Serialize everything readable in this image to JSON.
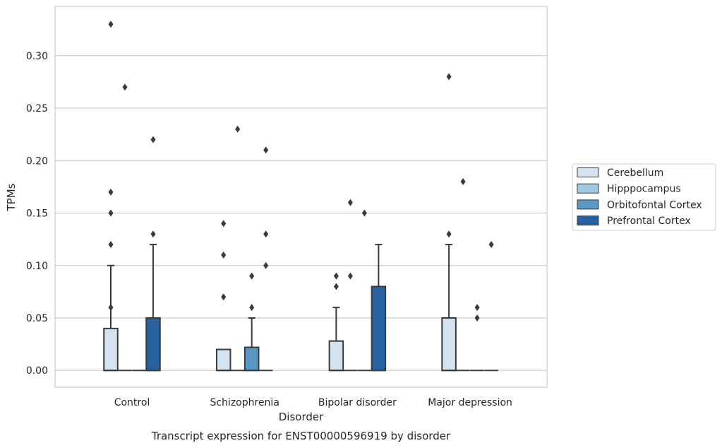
{
  "chart_data": {
    "type": "box",
    "xlabel": "Disorder",
    "ylabel": "TPMs",
    "caption": "Transcript expression for ENST00000596919 by disorder",
    "ylim": [
      -0.016,
      0.347
    ],
    "yticks": [
      "0.00",
      "0.05",
      "0.10",
      "0.15",
      "0.20",
      "0.25",
      "0.30"
    ],
    "categories": [
      "Control",
      "Schizophrenia",
      "Bipolar disorder",
      "Major depression"
    ],
    "legend_position": "right",
    "grid": true,
    "series": [
      {
        "name": "Cerebellum",
        "color": "#d4e3f1"
      },
      {
        "name": "Hipppocampus",
        "color": "#9ec9e0"
      },
      {
        "name": "Orbitofontal Cortex",
        "color": "#5b97c3"
      },
      {
        "name": "Prefrontal Cortex",
        "color": "#2861a0"
      }
    ],
    "boxes": [
      {
        "category": "Control",
        "series": "Cerebellum",
        "q1": 0,
        "median": 0,
        "q3": 0.04,
        "whisker_low": 0,
        "whisker_high": 0.1,
        "outliers": [
          0.33,
          0.17,
          0.15,
          0.12,
          0.06
        ]
      },
      {
        "category": "Control",
        "series": "Hipppocampus",
        "q1": 0,
        "median": 0,
        "q3": 0,
        "whisker_low": 0,
        "whisker_high": 0,
        "outliers": [
          0.27
        ]
      },
      {
        "category": "Control",
        "series": "Orbitofontal Cortex",
        "q1": 0,
        "median": 0,
        "q3": 0,
        "whisker_low": 0,
        "whisker_high": 0,
        "outliers": []
      },
      {
        "category": "Control",
        "series": "Prefrontal Cortex",
        "q1": 0,
        "median": 0,
        "q3": 0.05,
        "whisker_low": 0,
        "whisker_high": 0.12,
        "outliers": [
          0.22,
          0.13
        ]
      },
      {
        "category": "Schizophrenia",
        "series": "Cerebellum",
        "q1": 0,
        "median": 0,
        "q3": 0.02,
        "whisker_low": 0,
        "whisker_high": 0.02,
        "outliers": [
          0.14,
          0.11,
          0.07
        ]
      },
      {
        "category": "Schizophrenia",
        "series": "Hipppocampus",
        "q1": 0,
        "median": 0,
        "q3": 0,
        "whisker_low": 0,
        "whisker_high": 0,
        "outliers": [
          0.23
        ]
      },
      {
        "category": "Schizophrenia",
        "series": "Orbitofontal Cortex",
        "q1": 0,
        "median": 0,
        "q3": 0.022,
        "whisker_low": 0,
        "whisker_high": 0.05,
        "outliers": [
          0.09,
          0.06
        ]
      },
      {
        "category": "Schizophrenia",
        "series": "Prefrontal Cortex",
        "q1": 0,
        "median": 0,
        "q3": 0,
        "whisker_low": 0,
        "whisker_high": 0,
        "outliers": [
          0.21,
          0.13,
          0.1
        ]
      },
      {
        "category": "Bipolar disorder",
        "series": "Cerebellum",
        "q1": 0,
        "median": 0,
        "q3": 0.028,
        "whisker_low": 0,
        "whisker_high": 0.06,
        "outliers": [
          0.09,
          0.08
        ]
      },
      {
        "category": "Bipolar disorder",
        "series": "Hipppocampus",
        "q1": 0,
        "median": 0,
        "q3": 0,
        "whisker_low": 0,
        "whisker_high": 0,
        "outliers": [
          0.16,
          0.09
        ]
      },
      {
        "category": "Bipolar disorder",
        "series": "Orbitofontal Cortex",
        "q1": 0,
        "median": 0,
        "q3": 0,
        "whisker_low": 0,
        "whisker_high": 0,
        "outliers": [
          0.15
        ]
      },
      {
        "category": "Bipolar disorder",
        "series": "Prefrontal Cortex",
        "q1": 0,
        "median": 0,
        "q3": 0.08,
        "whisker_low": 0,
        "whisker_high": 0.12,
        "outliers": []
      },
      {
        "category": "Major depression",
        "series": "Cerebellum",
        "q1": 0,
        "median": 0,
        "q3": 0.05,
        "whisker_low": 0,
        "whisker_high": 0.12,
        "outliers": [
          0.28,
          0.13
        ]
      },
      {
        "category": "Major depression",
        "series": "Hipppocampus",
        "q1": 0,
        "median": 0,
        "q3": 0,
        "whisker_low": 0,
        "whisker_high": 0,
        "outliers": [
          0.18
        ]
      },
      {
        "category": "Major depression",
        "series": "Orbitofontal Cortex",
        "q1": 0,
        "median": 0,
        "q3": 0,
        "whisker_low": 0,
        "whisker_high": 0,
        "outliers": [
          0.06,
          0.05
        ]
      },
      {
        "category": "Major depression",
        "series": "Prefrontal Cortex",
        "q1": 0,
        "median": 0,
        "q3": 0,
        "whisker_low": 0,
        "whisker_high": 0,
        "outliers": [
          0.12
        ]
      }
    ]
  }
}
